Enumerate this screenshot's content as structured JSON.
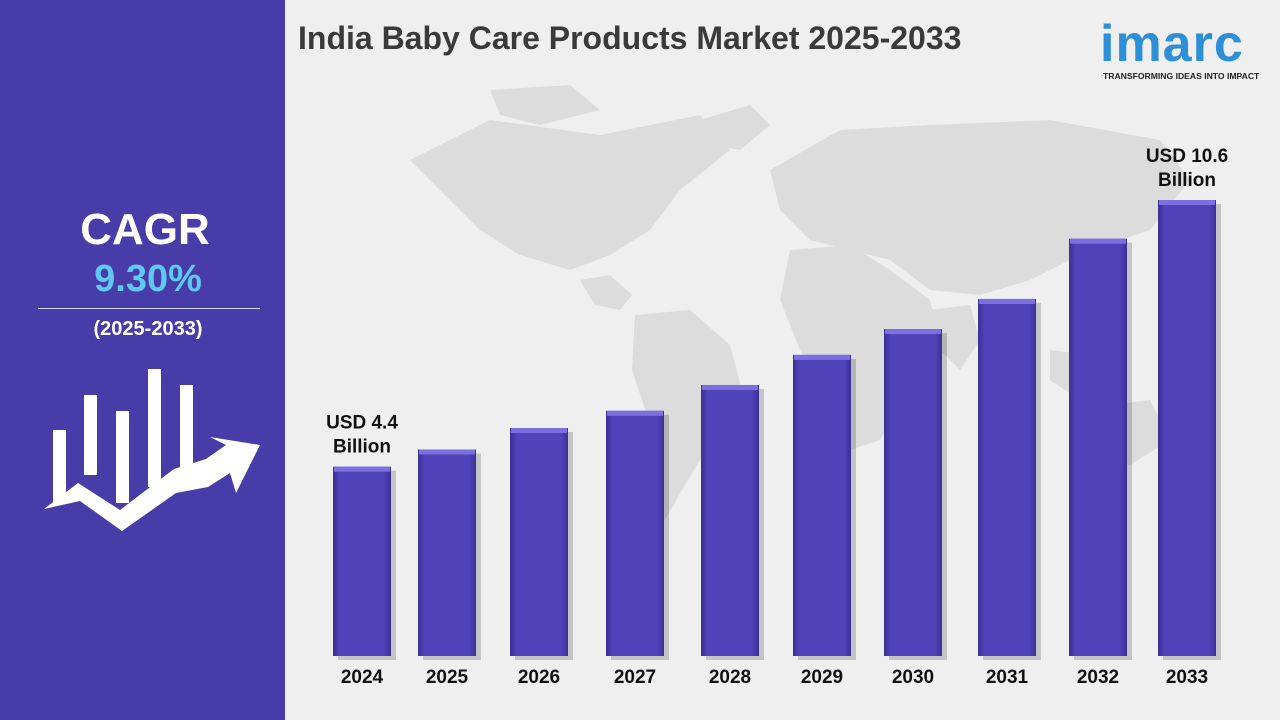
{
  "title": "India Baby Care Products Market 2025-2033",
  "logo": {
    "name": "imarc",
    "tagline": "TRANSFORMING IDEAS INTO IMPACT"
  },
  "sidebar": {
    "cagr_label": "CAGR",
    "cagr_value": "9.30%",
    "cagr_period": "(2025-2033)"
  },
  "colors": {
    "sidebar": "#473ca8",
    "bar": "#5141b8",
    "cagr_value": "#5ec8f2",
    "logo": "#2d8fd8",
    "background": "#efefef"
  },
  "chart_data": {
    "type": "bar",
    "title": "India Baby Care Products Market 2025-2033",
    "categories": [
      "2024",
      "2025",
      "2026",
      "2027",
      "2028",
      "2029",
      "2030",
      "2031",
      "2032",
      "2033"
    ],
    "values": [
      4.4,
      4.8,
      5.3,
      5.7,
      6.3,
      7.0,
      7.6,
      8.3,
      9.7,
      10.6
    ],
    "annotations": [
      {
        "category": "2024",
        "lines": [
          "USD 4.4",
          "Billion"
        ]
      },
      {
        "category": "2033",
        "lines": [
          "USD 10.6",
          "Billion"
        ]
      }
    ],
    "ylim": [
      0,
      10.6
    ],
    "grid": false
  }
}
